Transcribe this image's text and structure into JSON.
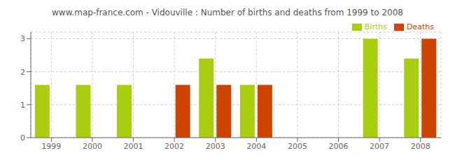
{
  "chart_data": {
    "type": "bar",
    "title": "www.map-france.com - Vidouville : Number of births and deaths from 1999 to 2008",
    "categories": [
      "1999",
      "2000",
      "2001",
      "2002",
      "2003",
      "2004",
      "2005",
      "2006",
      "2007",
      "2008"
    ],
    "series": [
      {
        "name": "Births",
        "color": "#aacc11",
        "values": [
          1.6,
          1.6,
          1.6,
          0,
          2.4,
          1.6,
          0,
          0,
          3.0,
          2.4
        ]
      },
      {
        "name": "Deaths",
        "color": "#cc4400",
        "values": [
          0,
          0,
          0,
          1.6,
          1.6,
          1.6,
          0,
          0,
          0,
          3.0
        ]
      }
    ],
    "ylim": [
      0,
      3.2
    ],
    "yticks": [
      0,
      1,
      2,
      3
    ],
    "grid": true,
    "legend": "upper right"
  }
}
